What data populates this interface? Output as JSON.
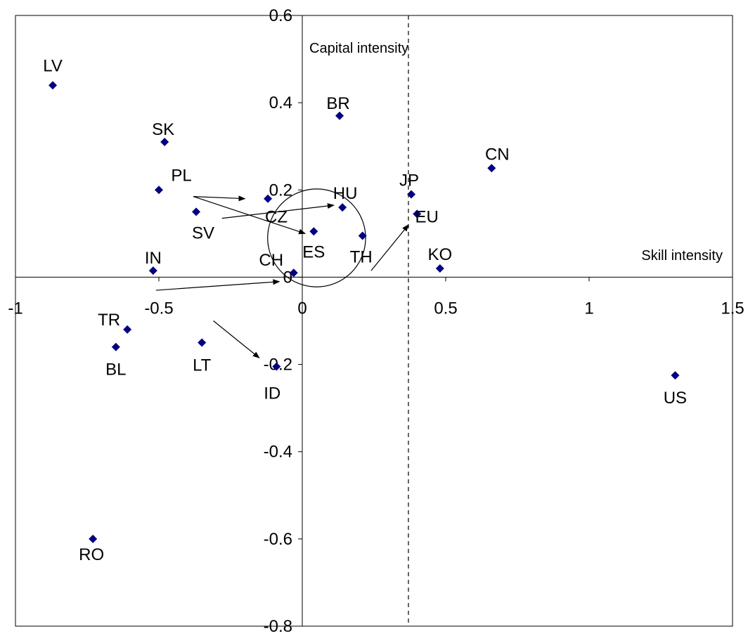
{
  "chart_data": {
    "type": "scatter",
    "title": "",
    "xlabel": "Skill intensity",
    "ylabel": "Capital intensity",
    "xlim": [
      -1,
      1.5
    ],
    "ylim": [
      -0.8,
      0.6
    ],
    "x_ticks": [
      "-1",
      "-0.5",
      "0",
      "0.5",
      "1",
      "1.5"
    ],
    "y_ticks": [
      "0.6",
      "0.4",
      "0.2",
      "0",
      "-0.2",
      "-0.4",
      "-0.6",
      "-0.8"
    ],
    "grid": false,
    "legend": "none",
    "marker_color": "#000080",
    "points": [
      {
        "label": "LV",
        "x": -0.87,
        "y": 0.44
      },
      {
        "label": "BR",
        "x": 0.13,
        "y": 0.37
      },
      {
        "label": "SK",
        "x": -0.48,
        "y": 0.31
      },
      {
        "label": "CN",
        "x": 0.66,
        "y": 0.25
      },
      {
        "label": "PL",
        "x": -0.5,
        "y": 0.2
      },
      {
        "label": "JP",
        "x": 0.38,
        "y": 0.19
      },
      {
        "label": "CZ",
        "x": -0.12,
        "y": 0.18
      },
      {
        "label": "HU",
        "x": 0.14,
        "y": 0.16
      },
      {
        "label": "SV",
        "x": -0.37,
        "y": 0.15
      },
      {
        "label": "EU",
        "x": 0.4,
        "y": 0.145
      },
      {
        "label": "ES",
        "x": 0.04,
        "y": 0.105
      },
      {
        "label": "TH",
        "x": 0.21,
        "y": 0.095
      },
      {
        "label": "IN",
        "x": -0.52,
        "y": 0.015
      },
      {
        "label": "KO",
        "x": 0.48,
        "y": 0.02
      },
      {
        "label": "CH",
        "x": -0.03,
        "y": 0.01
      },
      {
        "label": "TR",
        "x": -0.61,
        "y": -0.12
      },
      {
        "label": "BL",
        "x": -0.65,
        "y": -0.16
      },
      {
        "label": "LT",
        "x": -0.35,
        "y": -0.15
      },
      {
        "label": "ID",
        "x": -0.09,
        "y": -0.205
      },
      {
        "label": "US",
        "x": 1.3,
        "y": -0.225
      },
      {
        "label": "RO",
        "x": -0.73,
        "y": -0.6
      }
    ],
    "reference_line": {
      "x": 0.37,
      "style": "dashed"
    },
    "circle": {
      "cx": 0.05,
      "cy": 0.09,
      "r_x_units": 0.28
    },
    "arrows": [
      {
        "from": [
          -0.38,
          0.185
        ],
        "to": [
          -0.2,
          0.18
        ]
      },
      {
        "from": [
          -0.38,
          0.185
        ],
        "to": [
          0.01,
          0.1
        ]
      },
      {
        "from": [
          -0.28,
          0.135
        ],
        "to": [
          0.11,
          0.165
        ]
      },
      {
        "from": [
          -0.51,
          -0.03
        ],
        "to": [
          -0.08,
          -0.01
        ]
      },
      {
        "from": [
          -0.31,
          -0.1
        ],
        "to": [
          -0.15,
          -0.185
        ]
      },
      {
        "from": [
          0.24,
          0.015
        ],
        "to": [
          0.37,
          0.12
        ]
      }
    ]
  }
}
